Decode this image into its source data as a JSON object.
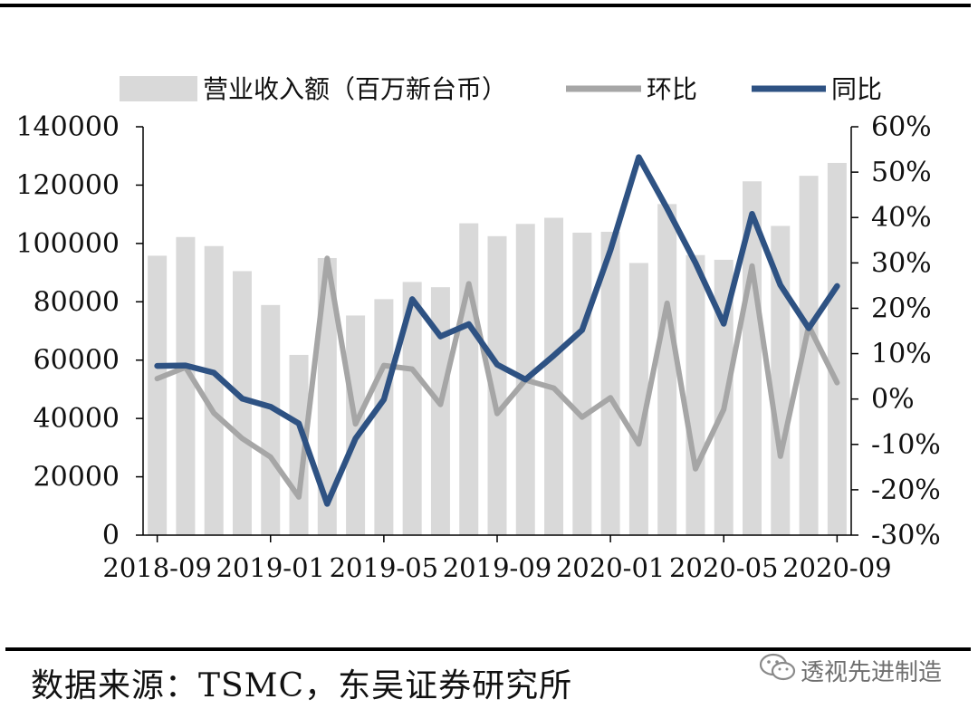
{
  "chart_data": {
    "type": "bar",
    "categories": [
      "2018-09",
      "2018-10",
      "2018-11",
      "2018-12",
      "2019-01",
      "2019-02",
      "2019-03",
      "2019-04",
      "2019-05",
      "2019-06",
      "2019-07",
      "2019-08",
      "2019-09",
      "2019-10",
      "2019-11",
      "2019-12",
      "2020-01",
      "2020-02",
      "2020-03",
      "2020-04",
      "2020-05",
      "2020-06",
      "2020-07",
      "2020-08",
      "2020-09"
    ],
    "x_tick_labels": [
      "2018-09",
      "2019-01",
      "2019-05",
      "2019-09",
      "2020-01",
      "2020-05",
      "2020-09"
    ],
    "series": [
      {
        "name": "营业收入额（百万新台币）",
        "type": "bar",
        "axis": "left",
        "color": "#d9d9d9",
        "values": [
          95800,
          102200,
          99100,
          90500,
          78900,
          61800,
          95000,
          75300,
          80900,
          86800,
          85000,
          106900,
          102500,
          106700,
          108800,
          103700,
          104000,
          93300,
          113500,
          96000,
          94400,
          121300,
          106000,
          123200,
          127600
        ]
      },
      {
        "name": "环比",
        "type": "line",
        "axis": "right",
        "color": "#a6a6a6",
        "unit": "%",
        "values": [
          4.5,
          7.0,
          -3.1,
          -8.7,
          -12.8,
          -21.6,
          31.0,
          -5.5,
          7.4,
          6.6,
          -1.2,
          25.4,
          -3.2,
          4.2,
          2.4,
          -4.0,
          0.3,
          -9.9,
          21.1,
          -15.4,
          -2.3,
          29.3,
          -12.6,
          16.1,
          3.6
        ]
      },
      {
        "name": "同比",
        "type": "line",
        "axis": "right",
        "color": "#2e5283",
        "unit": "%",
        "values": [
          7.3,
          7.4,
          5.8,
          0.1,
          -1.7,
          -5.4,
          -23.1,
          -8.7,
          -0.1,
          22.0,
          13.8,
          16.5,
          7.6,
          4.3,
          9.6,
          15.2,
          32.8,
          53.3,
          42.0,
          30.0,
          16.6,
          40.8,
          25.1,
          15.6,
          24.9
        ]
      }
    ],
    "left_axis": {
      "ylim": [
        0,
        140000
      ],
      "ticks": [
        "0",
        "20000",
        "40000",
        "60000",
        "80000",
        "100000",
        "120000",
        "140000"
      ]
    },
    "right_axis": {
      "ylim": [
        -30,
        60
      ],
      "ticks": [
        "-30%",
        "-20%",
        "-10%",
        "0%",
        "10%",
        "20%",
        "30%",
        "40%",
        "50%",
        "60%"
      ]
    },
    "legend": {
      "placement": "top"
    },
    "grid": false
  },
  "source_text": "数据来源：TSMC，东吴证券研究所",
  "watermark_text": "透视先进制造"
}
